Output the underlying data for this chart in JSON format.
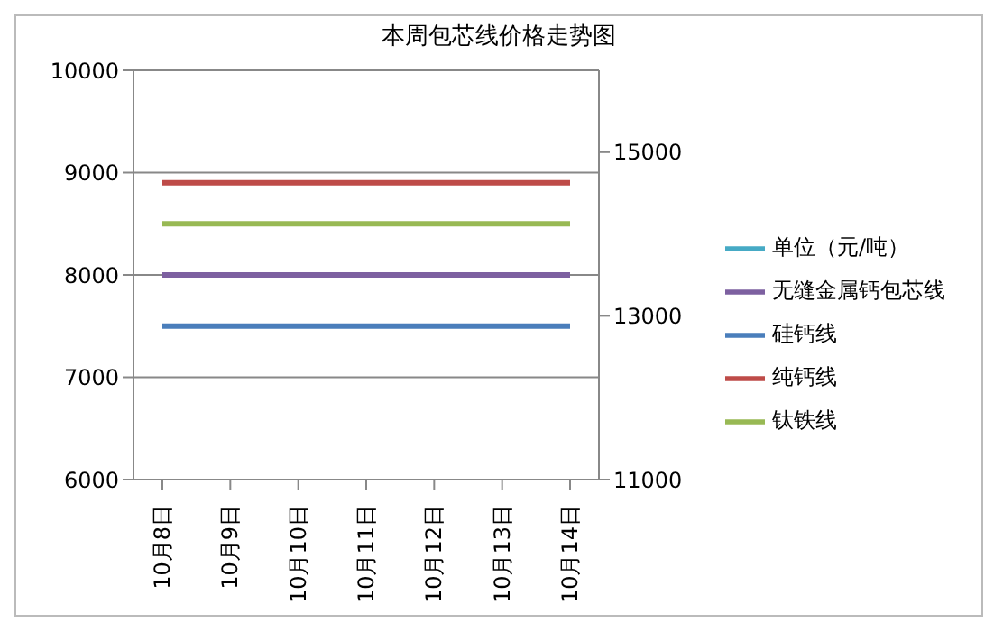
{
  "chart_data": {
    "type": "line",
    "title": "本周包芯线价格走势图",
    "categories": [
      "10月8日",
      "10月9日",
      "10月10日",
      "10月11日",
      "10月12日",
      "10月13日",
      "10月14日"
    ],
    "series": [
      {
        "name": "硅钙线",
        "color": "#4a7ebb",
        "values": [
          7500,
          7500,
          7500,
          7500,
          7500,
          7500,
          7500
        ]
      },
      {
        "name": "纯钙线",
        "color": "#be4b48",
        "values": [
          8900,
          8900,
          8900,
          8900,
          8900,
          8900,
          8900
        ]
      },
      {
        "name": "钛铁线",
        "color": "#98b954",
        "values": [
          8500,
          8500,
          8500,
          8500,
          8500,
          8500,
          8500
        ]
      },
      {
        "name": "单位（元/吨）",
        "color": "#46aac5",
        "axis": "y2",
        "values": [
          null,
          null,
          null,
          null,
          null,
          null,
          null
        ]
      },
      {
        "name": "无缝金属钙包芯线",
        "color": "#7d60a0",
        "values": [
          8000,
          8000,
          8000,
          8000,
          8000,
          8000,
          8000
        ]
      }
    ],
    "ylim": [
      6000,
      10000
    ],
    "yticks": [
      6000,
      7000,
      8000,
      9000,
      10000
    ],
    "y2lim": [
      11000,
      16000
    ],
    "y2ticks": [
      11000,
      13000,
      15000
    ],
    "grid": "y",
    "legend": "right",
    "marker": "none",
    "line_style": "solid"
  }
}
